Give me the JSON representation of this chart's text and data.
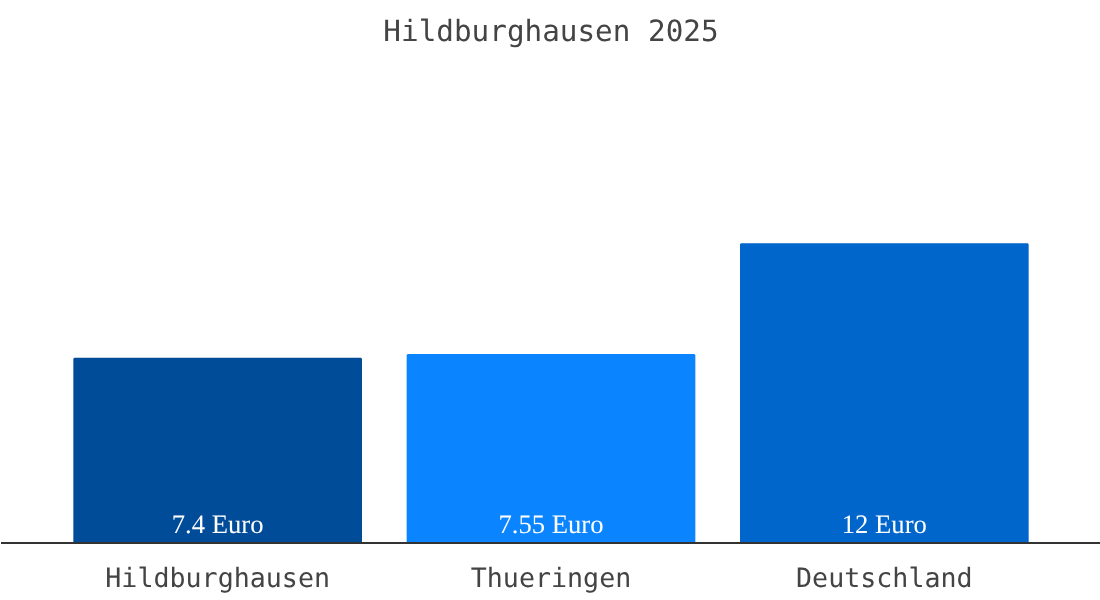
{
  "chart_data": {
    "type": "bar",
    "title": "Hildburghausen 2025",
    "categories": [
      "Hildburghausen",
      "Thueringen",
      "Deutschland"
    ],
    "values": [
      7.4,
      7.55,
      12
    ],
    "colors": [
      "#004c99",
      "#0a85ff",
      "#0066cc"
    ],
    "value_labels": [
      "7.4 Euro",
      "7.55 Euro",
      "12 Euro"
    ],
    "grid": false
  }
}
